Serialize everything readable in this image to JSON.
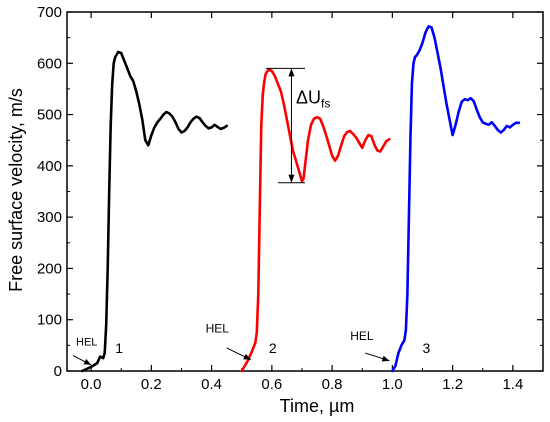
{
  "chart_data": {
    "type": "line",
    "xlabel": "Time, µm",
    "ylabel": "Free surface velocity, m/s",
    "xlim": [
      -0.08,
      1.5
    ],
    "ylim": [
      0,
      700
    ],
    "xticks": [
      0.0,
      0.2,
      0.4,
      0.6,
      0.8,
      1.0,
      1.2,
      1.4
    ],
    "xtick_labels": [
      "0.0",
      "0.2",
      "0.4",
      "0.6",
      "0.8",
      "1.0",
      "1.2",
      "1.4"
    ],
    "yticks": [
      0,
      100,
      200,
      300,
      400,
      500,
      600,
      700
    ],
    "ytick_labels": [
      "0",
      "100",
      "200",
      "300",
      "400",
      "500",
      "600",
      "700"
    ],
    "grid": false,
    "series": [
      {
        "label": "1",
        "color": "#000000",
        "x": [
          -0.03,
          0.0,
          0.02,
          0.03,
          0.04,
          0.045,
          0.05,
          0.055,
          0.06,
          0.065,
          0.07,
          0.075,
          0.08,
          0.09,
          0.1,
          0.11,
          0.12,
          0.13,
          0.14,
          0.15,
          0.16,
          0.17,
          0.18,
          0.19,
          0.2,
          0.21,
          0.22,
          0.23,
          0.24,
          0.25,
          0.26,
          0.27,
          0.28,
          0.29,
          0.3,
          0.31,
          0.32,
          0.33,
          0.34,
          0.35,
          0.36,
          0.37,
          0.38,
          0.39,
          0.4,
          0.41,
          0.42,
          0.43,
          0.44,
          0.45
        ],
        "y": [
          0,
          8,
          15,
          28,
          25,
          35,
          90,
          200,
          350,
          480,
          560,
          600,
          612,
          622,
          620,
          605,
          590,
          575,
          565,
          545,
          520,
          490,
          450,
          440,
          460,
          475,
          485,
          492,
          500,
          505,
          502,
          496,
          485,
          472,
          465,
          468,
          475,
          485,
          492,
          496,
          493,
          485,
          478,
          473,
          475,
          480,
          476,
          472,
          474,
          478
        ]
      },
      {
        "label": "2",
        "color": "#ff0000",
        "x": [
          0.5,
          0.52,
          0.535,
          0.545,
          0.55,
          0.555,
          0.56,
          0.565,
          0.57,
          0.575,
          0.58,
          0.59,
          0.6,
          0.61,
          0.62,
          0.63,
          0.64,
          0.65,
          0.66,
          0.67,
          0.68,
          0.69,
          0.7,
          0.705,
          0.71,
          0.72,
          0.73,
          0.74,
          0.75,
          0.76,
          0.77,
          0.78,
          0.79,
          0.8,
          0.81,
          0.82,
          0.83,
          0.84,
          0.85,
          0.86,
          0.87,
          0.88,
          0.89,
          0.9,
          0.91,
          0.92,
          0.93,
          0.94,
          0.95,
          0.96,
          0.97,
          0.98,
          0.99
        ],
        "y": [
          0,
          20,
          40,
          55,
          75,
          150,
          320,
          480,
          540,
          565,
          580,
          588,
          585,
          575,
          560,
          545,
          520,
          490,
          460,
          430,
          410,
          390,
          370,
          375,
          400,
          450,
          480,
          492,
          495,
          492,
          478,
          460,
          440,
          420,
          410,
          420,
          440,
          458,
          466,
          468,
          462,
          455,
          445,
          435,
          450,
          460,
          458,
          442,
          430,
          428,
          438,
          448,
          452
        ]
      },
      {
        "label": "3",
        "color": "#0000ff",
        "x": [
          1.0,
          1.01,
          1.02,
          1.03,
          1.04,
          1.045,
          1.05,
          1.055,
          1.06,
          1.065,
          1.07,
          1.075,
          1.08,
          1.09,
          1.1,
          1.11,
          1.12,
          1.13,
          1.14,
          1.15,
          1.16,
          1.17,
          1.18,
          1.19,
          1.2,
          1.21,
          1.22,
          1.23,
          1.24,
          1.25,
          1.26,
          1.27,
          1.28,
          1.29,
          1.3,
          1.31,
          1.32,
          1.33,
          1.34,
          1.35,
          1.36,
          1.37,
          1.38,
          1.39,
          1.4,
          1.41,
          1.42
        ],
        "y": [
          0,
          10,
          35,
          50,
          60,
          80,
          150,
          300,
          450,
          560,
          600,
          612,
          615,
          625,
          640,
          660,
          672,
          670,
          650,
          620,
          590,
          555,
          520,
          490,
          460,
          480,
          505,
          525,
          530,
          528,
          532,
          526,
          510,
          495,
          485,
          482,
          480,
          485,
          478,
          470,
          465,
          470,
          478,
          475,
          480,
          484,
          484
        ]
      }
    ],
    "annotations": {
      "hel": "HEL",
      "delta_label": "ΔU",
      "delta_sub": "fs",
      "delta_top": 590,
      "delta_bottom": 367,
      "delta_x": 0.665
    }
  }
}
